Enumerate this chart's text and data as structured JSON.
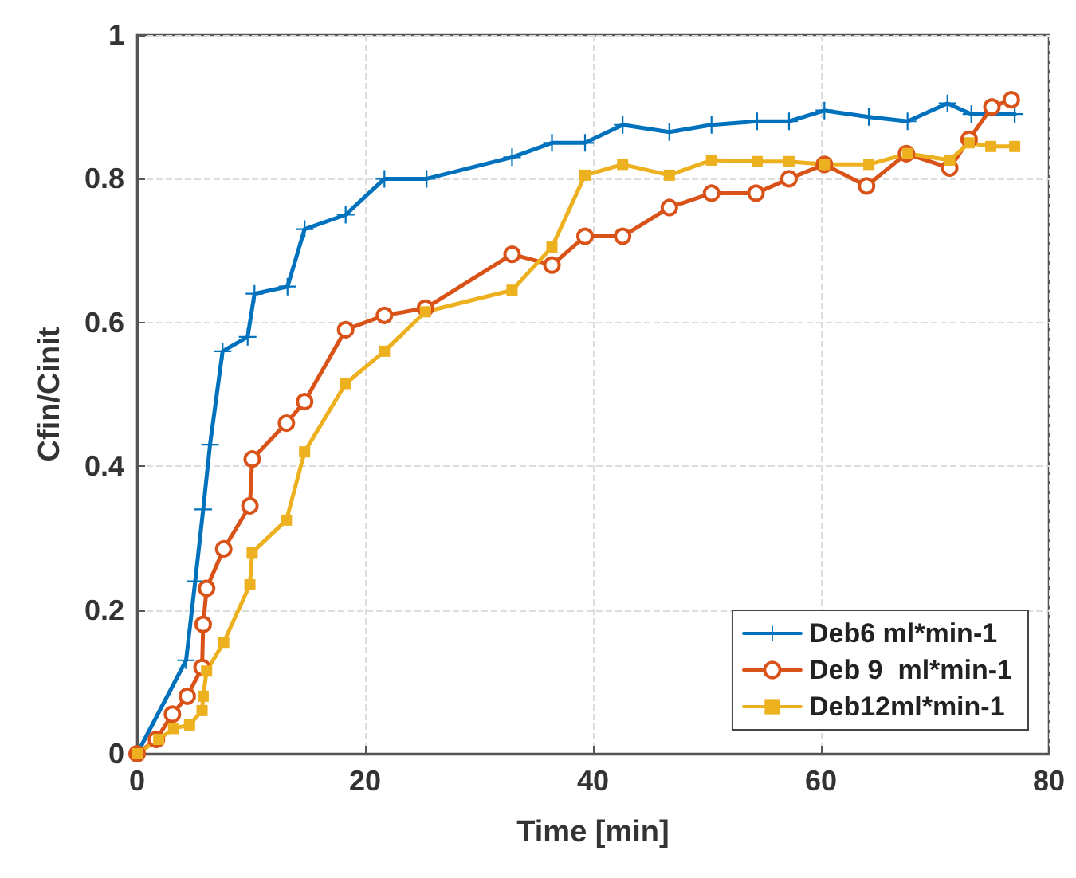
{
  "chart_data": {
    "type": "line",
    "xlabel": "Time [min]",
    "ylabel": "Cfin/Cinit",
    "xlim": [
      0,
      80
    ],
    "xticks": [
      0,
      20,
      40,
      60,
      80
    ],
    "ylim": [
      0,
      1
    ],
    "yticks": [
      0,
      0.2,
      0.4,
      0.6,
      0.8,
      1
    ],
    "grid": true,
    "legend": "bottom right",
    "line_style": "solid",
    "series": [
      {
        "name": "Deb6 ml*min-1",
        "color": "#0072bd",
        "marker": "cross",
        "x": [
          0,
          4.3,
          5.1,
          5.8,
          6.4,
          7.5,
          9.7,
          10.3,
          13.2,
          14.7,
          18.3,
          21.7,
          25.4,
          32.9,
          36.4,
          39.3,
          42.6,
          46.7,
          50.4,
          54.4,
          57.2,
          60.3,
          64.2,
          67.6,
          71.1,
          73.2,
          77
        ],
        "values": [
          0,
          0.13,
          0.24,
          0.34,
          0.43,
          0.56,
          0.58,
          0.64,
          0.65,
          0.73,
          0.75,
          0.8,
          0.8,
          0.83,
          0.85,
          0.85,
          0.875,
          0.865,
          0.875,
          0.88,
          0.88,
          0.895,
          0.886,
          0.88,
          0.905,
          0.89,
          0.89
        ]
      },
      {
        "name": "Deb 9  ml*min-1",
        "color": "#d95319",
        "marker": "circle",
        "x": [
          0,
          1.7,
          3.1,
          4.4,
          5.7,
          5.8,
          6.1,
          7.6,
          9.9,
          10.1,
          13.1,
          14.7,
          18.3,
          21.7,
          25.3,
          32.9,
          36.4,
          39.3,
          42.6,
          46.7,
          50.4,
          54.3,
          57.2,
          60.3,
          64,
          67.5,
          71.3,
          73,
          75,
          76.7
        ],
        "values": [
          0,
          0.02,
          0.055,
          0.08,
          0.12,
          0.18,
          0.23,
          0.285,
          0.345,
          0.41,
          0.46,
          0.49,
          0.59,
          0.61,
          0.62,
          0.695,
          0.68,
          0.72,
          0.72,
          0.76,
          0.78,
          0.78,
          0.8,
          0.82,
          0.79,
          0.835,
          0.815,
          0.855,
          0.9,
          0.91
        ]
      },
      {
        "name": "Deb12ml*min-1",
        "color": "#edb120",
        "marker": "square",
        "x": [
          0,
          1.9,
          3.2,
          4.6,
          5.7,
          5.8,
          6.1,
          7.6,
          9.9,
          10.1,
          13.1,
          14.7,
          18.3,
          21.7,
          25.3,
          32.9,
          36.4,
          39.3,
          42.6,
          46.7,
          50.4,
          54.4,
          57.2,
          60.3,
          64.2,
          67.6,
          71.3,
          73,
          74.9,
          77
        ],
        "values": [
          0,
          0.02,
          0.035,
          0.04,
          0.06,
          0.08,
          0.115,
          0.155,
          0.235,
          0.28,
          0.325,
          0.42,
          0.515,
          0.56,
          0.615,
          0.645,
          0.705,
          0.805,
          0.82,
          0.805,
          0.826,
          0.824,
          0.824,
          0.82,
          0.82,
          0.835,
          0.826,
          0.85,
          0.845,
          0.845
        ]
      }
    ]
  }
}
